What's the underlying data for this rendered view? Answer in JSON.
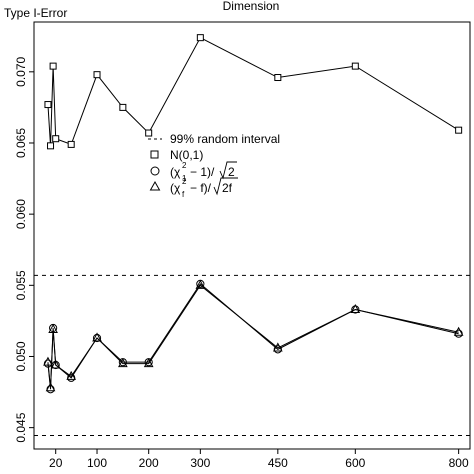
{
  "chart_data": {
    "type": "line",
    "title": "Dimension",
    "ylabel": "Type I-Error",
    "xlabel": "",
    "x_tick_labels": [
      "20",
      "100",
      "200",
      "300",
      "450",
      "600",
      "800"
    ],
    "x_tick_values": [
      20,
      100,
      200,
      300,
      450,
      600,
      800
    ],
    "x_positions": [
      5,
      10,
      15,
      20,
      50,
      100,
      150,
      200,
      300,
      450,
      600,
      800
    ],
    "ylim": [
      0.0435,
      0.0735
    ],
    "yticks": [
      0.045,
      0.05,
      0.055,
      0.06,
      0.065,
      0.07
    ],
    "ytick_labels": [
      "0.045",
      "0.050",
      "0.055",
      "0.060",
      "0.065",
      "0.070"
    ],
    "reference_lines": [
      {
        "name": "99% random interval",
        "y": 0.0557,
        "style": "dashed"
      },
      {
        "name": "99% random interval",
        "y": 0.04445,
        "style": "dashed"
      }
    ],
    "series": [
      {
        "name": "N(0,1)",
        "marker": "square",
        "values": [
          0.0677,
          0.0648,
          0.0704,
          0.0653,
          0.0649,
          0.0698,
          0.0675,
          0.0657,
          0.0724,
          0.0696,
          0.0704,
          0.0659
        ]
      },
      {
        "name": "(χ²_1 − 1)/√2",
        "marker": "circle",
        "values": [
          0.0495,
          0.0477,
          0.052,
          0.0494,
          0.0485,
          0.0513,
          0.0496,
          0.0496,
          0.0551,
          0.0505,
          0.0533,
          0.0516
        ]
      },
      {
        "name": "(χ²_f − f)/√2f",
        "marker": "triangle",
        "values": [
          0.0496,
          0.0478,
          0.0519,
          0.0494,
          0.0486,
          0.0513,
          0.0495,
          0.0495,
          0.055,
          0.0506,
          0.0533,
          0.0517
        ]
      }
    ],
    "legend": {
      "position": "center-left",
      "entries": [
        {
          "marker": "dashed-line",
          "label": "99% random interval"
        },
        {
          "marker": "square",
          "label": "N(0,1)"
        },
        {
          "marker": "circle",
          "label_main": "(χ",
          "label_sub": "1",
          "label_sup": "2",
          "label_rest": "− 1)/",
          "label_root": "2"
        },
        {
          "marker": "triangle",
          "label_main": "(χ",
          "label_sub": "f",
          "label_sup": "2",
          "label_rest": "− f)/",
          "label_root": "2f"
        }
      ]
    },
    "grid": false
  }
}
